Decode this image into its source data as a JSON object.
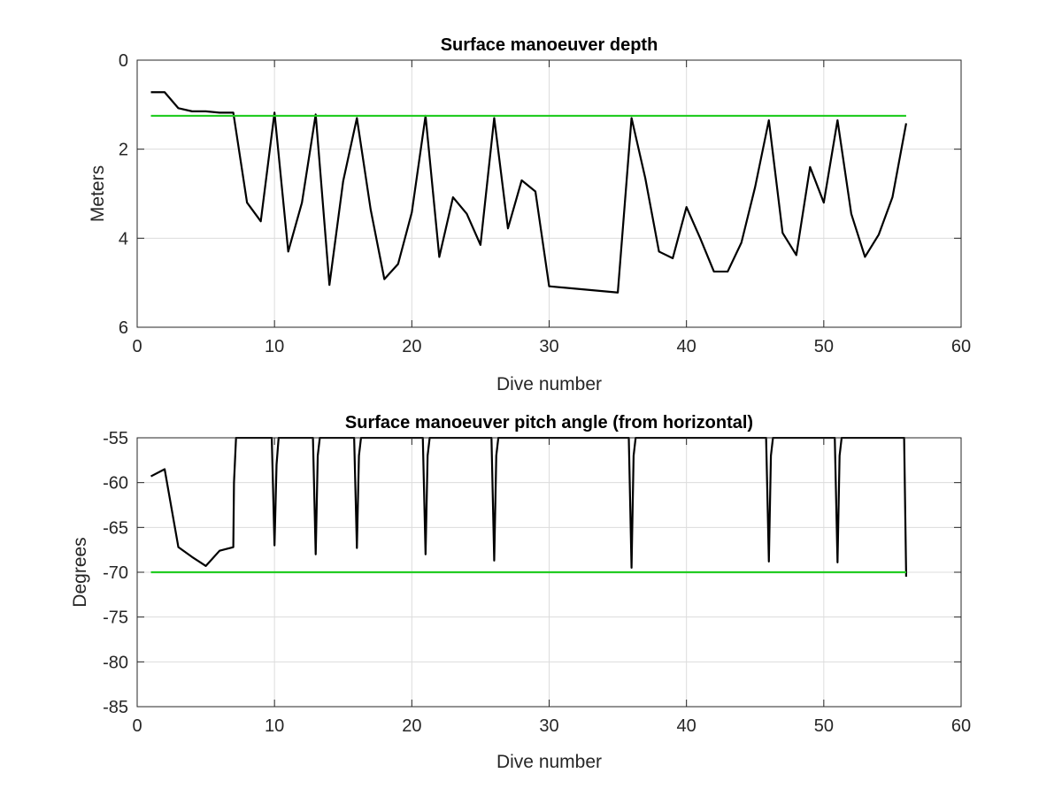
{
  "chart_data": [
    {
      "type": "line",
      "title": "Surface manoeuver depth",
      "xlabel": "Dive number",
      "ylabel": "Meters",
      "xlim": [
        0,
        60
      ],
      "ylim": [
        0,
        6
      ],
      "y_reversed": true,
      "xticks": [
        "0",
        "10",
        "20",
        "30",
        "40",
        "50",
        "60"
      ],
      "yticks": [
        "0",
        "2",
        "4",
        "6"
      ],
      "grid": true,
      "series": [
        {
          "color": "#000000",
          "x": [
            1,
            2,
            3,
            4,
            5,
            6,
            7,
            8,
            9,
            10,
            11,
            12,
            13,
            14,
            15,
            16,
            17,
            18,
            19,
            20,
            21,
            22,
            23,
            24,
            25,
            26,
            27,
            28,
            29,
            30,
            35,
            36,
            37,
            38,
            39,
            40,
            41,
            42,
            43,
            44,
            45,
            46,
            47,
            48,
            49,
            50,
            51,
            52,
            53,
            54,
            55,
            56
          ],
          "y": [
            0.72,
            0.72,
            1.08,
            1.15,
            1.15,
            1.18,
            1.18,
            3.2,
            3.62,
            1.18,
            4.3,
            3.2,
            1.22,
            5.05,
            2.72,
            1.3,
            3.35,
            4.92,
            4.58,
            3.42,
            1.25,
            4.42,
            3.08,
            3.45,
            4.15,
            1.3,
            3.78,
            2.7,
            2.95,
            5.08,
            5.22,
            1.3,
            2.65,
            4.3,
            4.45,
            3.3,
            4.0,
            4.75,
            4.75,
            4.1,
            2.85,
            1.35,
            3.88,
            4.38,
            2.4,
            3.2,
            1.35,
            3.45,
            4.42,
            3.92,
            3.08,
            1.42
          ]
        },
        {
          "color": "#22cc22",
          "x": [
            1,
            56
          ],
          "y": [
            1.25,
            1.25
          ]
        }
      ]
    },
    {
      "type": "line",
      "title": "Surface manoeuver pitch angle (from horizontal)",
      "xlabel": "Dive number",
      "ylabel": "Degrees",
      "xlim": [
        0,
        60
      ],
      "ylim": [
        -85,
        -55
      ],
      "xticks": [
        "0",
        "10",
        "20",
        "30",
        "40",
        "50",
        "60"
      ],
      "yticks": [
        "-55",
        "-60",
        "-65",
        "-70",
        "-75",
        "-80",
        "-85"
      ],
      "grid": true,
      "series": [
        {
          "color": "#000000",
          "x": [
            1,
            2,
            3,
            4,
            5,
            6,
            7,
            7.05,
            7.2,
            9.8,
            10,
            10.15,
            10.3,
            12.8,
            13,
            13.15,
            13.3,
            15.8,
            16,
            16.15,
            16.3,
            20.8,
            21,
            21.15,
            21.3,
            25.8,
            26,
            26.15,
            26.3,
            35.8,
            36,
            36.15,
            36.3,
            45.8,
            46,
            46.15,
            46.3,
            50.8,
            51,
            51.15,
            51.3,
            55.85,
            56
          ],
          "y": [
            -59.3,
            -58.5,
            -67.2,
            -68.3,
            -69.3,
            -67.6,
            -67.2,
            -60,
            -55,
            -55,
            -67,
            -58,
            -55,
            -55,
            -68,
            -57,
            -55,
            -55,
            -67.3,
            -57,
            -55,
            -55,
            -68,
            -57,
            -55,
            -55,
            -68.7,
            -57,
            -55,
            -55,
            -69.5,
            -57,
            -55,
            -55,
            -68.8,
            -57,
            -55,
            -55,
            -68.9,
            -57,
            -55,
            -55,
            -70.5
          ]
        },
        {
          "color": "#22cc22",
          "x": [
            1,
            56
          ],
          "y": [
            -70,
            -70
          ]
        }
      ]
    }
  ]
}
